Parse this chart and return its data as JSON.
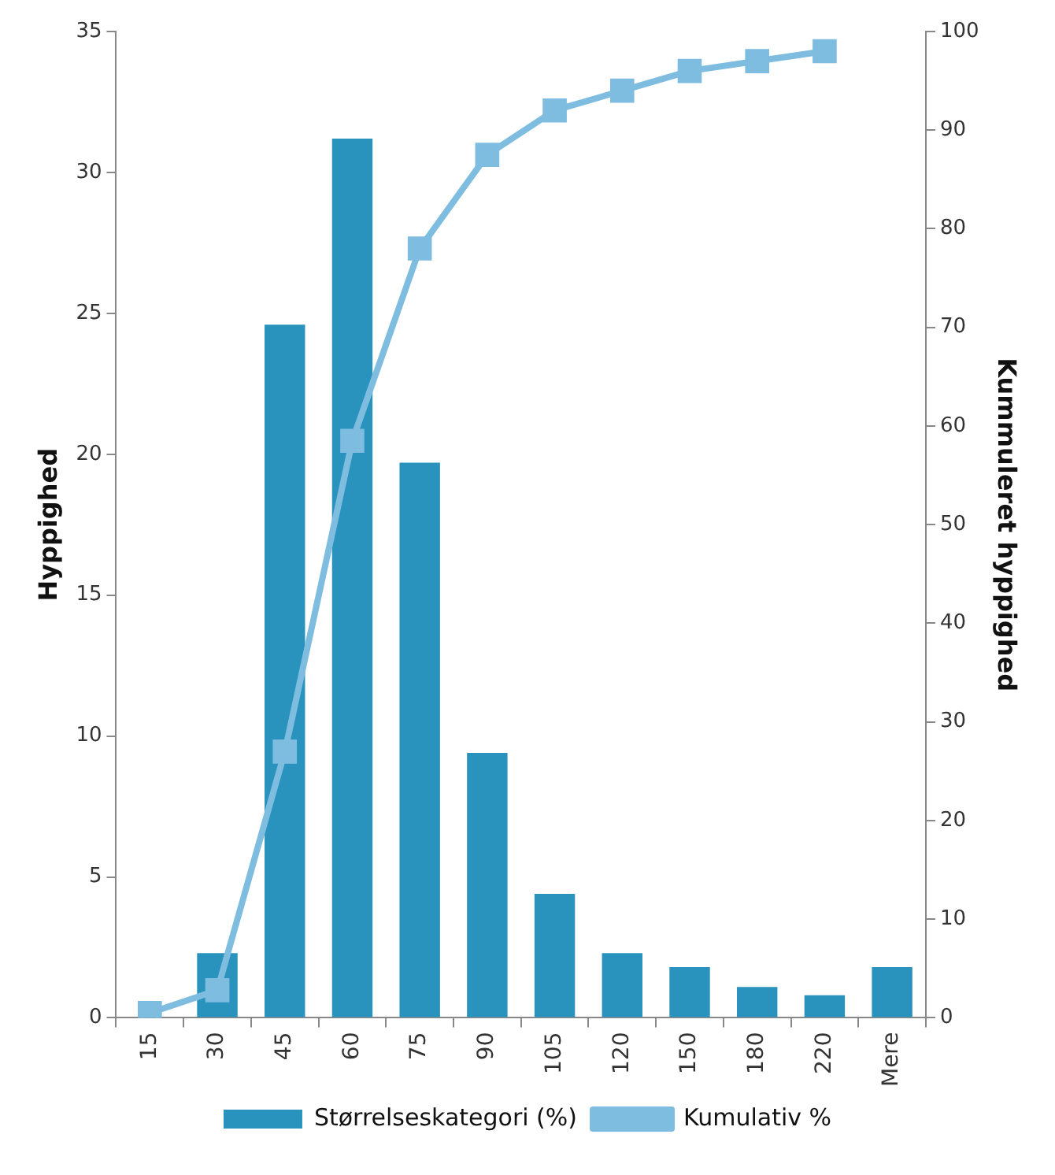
{
  "chart_data": {
    "type": "bar",
    "ylabel": "Hyppighed",
    "y2label": "Kummuleret hyppighed",
    "categories": [
      "15",
      "30",
      "45",
      "60",
      "75",
      "90",
      "105",
      "120",
      "150",
      "180",
      "220",
      "Mere"
    ],
    "series": [
      {
        "name": "Størrelseskategori (%)",
        "color": "#2a93bd",
        "values": [
          0,
          2.3,
          24.6,
          31.2,
          19.7,
          9.4,
          4.4,
          2.3,
          1.8,
          1.1,
          0.8,
          1.8
        ]
      },
      {
        "name": "Kumulativ %",
        "type": "line",
        "axis": "y2",
        "color": "#7ebde0",
        "marker": "square",
        "values": [
          0.5,
          2.8,
          27,
          58.5,
          78,
          87.5,
          92,
          94,
          96,
          97,
          98,
          null
        ]
      }
    ],
    "ylim": [
      0,
      35
    ],
    "yticks": [
      0,
      5,
      10,
      15,
      20,
      25,
      30,
      35
    ],
    "y2lim": [
      0,
      100
    ],
    "y2ticks": [
      0,
      10,
      20,
      30,
      40,
      50,
      60,
      70,
      80,
      90,
      100
    ],
    "grid": false,
    "legend": "bottom"
  }
}
